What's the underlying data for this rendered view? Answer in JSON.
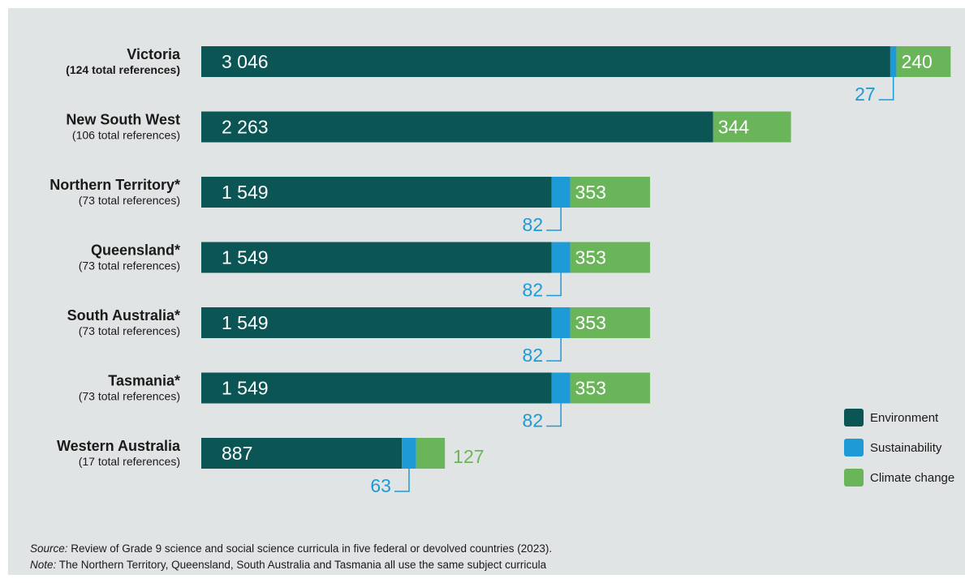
{
  "colors": {
    "environment": "#0b5555",
    "sustainability": "#1e9ad6",
    "climate": "#6ab55a",
    "background": "#e1e4e4"
  },
  "chart_data": {
    "type": "bar",
    "orientation": "horizontal",
    "stacked": true,
    "categories": [
      {
        "name": "Victoria",
        "sub": "(124 total references)",
        "bold_sub": true
      },
      {
        "name": "New South West",
        "sub": "(106 total references)",
        "bold_sub": false
      },
      {
        "name": "Northern Territory*",
        "sub": "(73 total references)",
        "bold_sub": false
      },
      {
        "name": "Queensland*",
        "sub": "(73 total references)",
        "bold_sub": false
      },
      {
        "name": "South Australia*",
        "sub": "(73 total references)",
        "bold_sub": false
      },
      {
        "name": "Tasmania*",
        "sub": "(73 total references)",
        "bold_sub": false
      },
      {
        "name": "Western Australia",
        "sub": "(17 total references)",
        "bold_sub": false
      }
    ],
    "series": [
      {
        "name": "Environment",
        "values": [
          3046,
          2263,
          1549,
          1549,
          1549,
          1549,
          887
        ],
        "labels": [
          "3 046",
          "2 263",
          "1 549",
          "1 549",
          "1 549",
          "1 549",
          "887"
        ]
      },
      {
        "name": "Sustainability",
        "values": [
          27,
          0,
          82,
          82,
          82,
          82,
          63
        ],
        "labels": [
          "27",
          "",
          "82",
          "82",
          "82",
          "82",
          "63"
        ]
      },
      {
        "name": "Climate change",
        "values": [
          240,
          344,
          353,
          353,
          353,
          353,
          127
        ],
        "labels": [
          "240",
          "344",
          "353",
          "353",
          "353",
          "353",
          "127"
        ]
      }
    ],
    "legend": {
      "placement": "bottom-right"
    }
  },
  "footer": {
    "source_label": "Source:",
    "source_text": " Review of Grade 9 science and social science curricula in five federal or devolved countries (2023).",
    "note_label": "Note:",
    "note_text": " The Northern Territory, Queensland, South Australia and Tasmania all use the same subject curricula"
  }
}
